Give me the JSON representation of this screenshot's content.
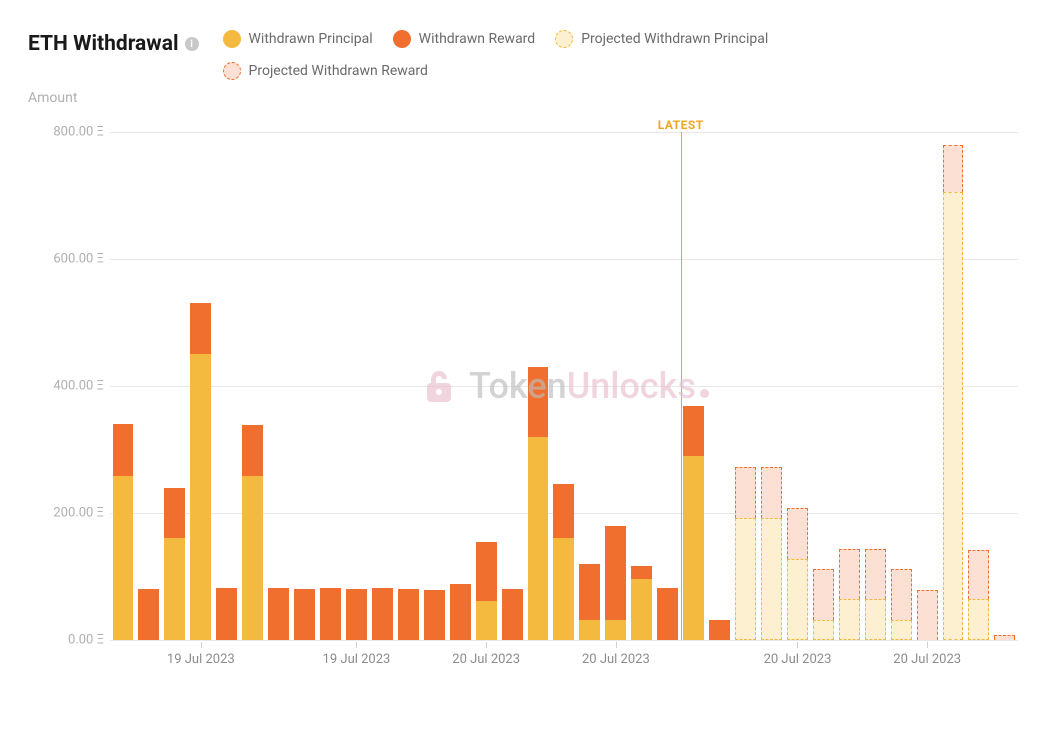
{
  "title": "ETH Withdrawal",
  "ylabel": "Amount",
  "legend": {
    "withdrawn_principal": "Withdrawn Principal",
    "withdrawn_reward": "Withdrawn Reward",
    "projected_principal": "Projected Withdrawn Principal",
    "projected_reward": "Projected Withdrawn Reward"
  },
  "colors": {
    "principal": "#f4b93f",
    "reward": "#f06f2e",
    "proj_principal_fill": "#fdf0d0",
    "proj_principal_border": "#f4b93f",
    "proj_reward_fill": "#fce0d4",
    "proj_reward_border": "#f06f2e",
    "grid": "#e8e8e8",
    "latest": "#f0a421",
    "background": "#ffffff",
    "text_muted": "#b0b0b0"
  },
  "chart": {
    "type": "stacked-bar",
    "ylim": [
      0,
      800
    ],
    "ytick_step": 200,
    "ytick_suffix": " Ξ",
    "ytick_labels": [
      "0.00 Ξ",
      "200.00 Ξ",
      "400.00 Ξ",
      "600.00 Ξ",
      "800.00 Ξ"
    ],
    "latest_label": "LATEST",
    "latest_index": 21,
    "x_labels": [
      {
        "index": 3,
        "text": "19 Jul 2023"
      },
      {
        "index": 9,
        "text": "19 Jul 2023"
      },
      {
        "index": 14,
        "text": "20 Jul 2023"
      },
      {
        "index": 19,
        "text": "20 Jul 2023"
      },
      {
        "index": 26,
        "text": "20 Jul 2023"
      },
      {
        "index": 31,
        "text": "20 Jul 2023"
      }
    ],
    "bars": [
      {
        "principal": 258,
        "reward": 82,
        "projected": false
      },
      {
        "principal": 0,
        "reward": 80,
        "projected": false
      },
      {
        "principal": 160,
        "reward": 80,
        "projected": false
      },
      {
        "principal": 450,
        "reward": 80,
        "projected": false
      },
      {
        "principal": 0,
        "reward": 82,
        "projected": false
      },
      {
        "principal": 258,
        "reward": 80,
        "projected": false
      },
      {
        "principal": 0,
        "reward": 82,
        "projected": false
      },
      {
        "principal": 0,
        "reward": 80,
        "projected": false
      },
      {
        "principal": 0,
        "reward": 82,
        "projected": false
      },
      {
        "principal": 0,
        "reward": 80,
        "projected": false
      },
      {
        "principal": 0,
        "reward": 82,
        "projected": false
      },
      {
        "principal": 0,
        "reward": 80,
        "projected": false
      },
      {
        "principal": 0,
        "reward": 78,
        "projected": false
      },
      {
        "principal": 0,
        "reward": 88,
        "projected": false
      },
      {
        "principal": 62,
        "reward": 92,
        "projected": false
      },
      {
        "principal": 0,
        "reward": 80,
        "projected": false
      },
      {
        "principal": 320,
        "reward": 110,
        "projected": false
      },
      {
        "principal": 160,
        "reward": 85,
        "projected": false
      },
      {
        "principal": 32,
        "reward": 88,
        "projected": false
      },
      {
        "principal": 32,
        "reward": 148,
        "projected": false
      },
      {
        "principal": 96,
        "reward": 20,
        "projected": false
      },
      {
        "principal": 0,
        "reward": 82,
        "projected": false
      },
      {
        "principal": 290,
        "reward": 78,
        "projected": false
      },
      {
        "principal": 0,
        "reward": 32,
        "projected": false
      },
      {
        "principal": 192,
        "reward": 80,
        "projected": true
      },
      {
        "principal": 192,
        "reward": 80,
        "projected": true
      },
      {
        "principal": 128,
        "reward": 80,
        "projected": true
      },
      {
        "principal": 32,
        "reward": 80,
        "projected": true
      },
      {
        "principal": 64,
        "reward": 80,
        "projected": true
      },
      {
        "principal": 64,
        "reward": 80,
        "projected": true
      },
      {
        "principal": 32,
        "reward": 80,
        "projected": true
      },
      {
        "principal": 0,
        "reward": 78,
        "projected": true
      },
      {
        "principal": 705,
        "reward": 75,
        "projected": true
      },
      {
        "principal": 64,
        "reward": 78,
        "projected": true
      },
      {
        "principal": 0,
        "reward": 8,
        "projected": true
      }
    ]
  },
  "watermark": {
    "part1": "Token",
    "part2": "Unlocks"
  }
}
